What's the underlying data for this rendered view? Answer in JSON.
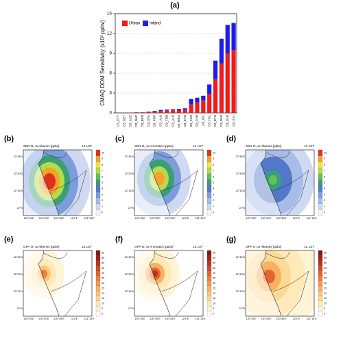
{
  "chart_data": {
    "type": "bar",
    "title": "(a)",
    "y_label": "CMAQ DDM Sensitivity (x10³ ppbv)",
    "categories": [
      "O3_ETY",
      "O3_KET",
      "O3_ACE",
      "O3_NAP",
      "O3_BEN",
      "O3_ETA",
      "O3_PRP",
      "O3_ALK",
      "O3_TEB",
      "O3_ALD",
      "O3_MEO",
      "O3_ETO",
      "O3_XSO",
      "O3_FOR",
      "O3_IOL",
      "O3_TOL",
      "O3_ETH",
      "O3_PAR",
      "O3_OLE",
      "O3_XYL"
    ],
    "series": [
      {
        "name": "Urban",
        "color": "#ee1c1c",
        "values": [
          0.01,
          0.02,
          0.03,
          0.07,
          0.07,
          0.14,
          0.2,
          0.3,
          0.35,
          0.4,
          0.42,
          0.5,
          1.3,
          1.6,
          1.9,
          2.9,
          5.1,
          7.5,
          9.0,
          9.5
        ]
      },
      {
        "name": "Inland",
        "color": "#1c1cee",
        "values": [
          0.01,
          0.01,
          0.02,
          0.03,
          0.03,
          0.06,
          0.1,
          0.15,
          0.15,
          0.15,
          0.18,
          0.2,
          0.8,
          0.7,
          0.7,
          1.4,
          2.8,
          3.7,
          4.3,
          4.1
        ]
      }
    ],
    "stacked": true,
    "ylim": [
      0,
      15
    ],
    "yticks": [
      0,
      3,
      6,
      9,
      12,
      15
    ],
    "grid": true,
    "legend": "upper left"
  },
  "maps": {
    "lon_labels": [
      "120°15'E",
      "120°30'E",
      "120°45'E",
      "121°E",
      "121°15'E"
    ],
    "lat_labels": [
      "22°45'N",
      "22°30'N",
      "22°15'N",
      "22°N"
    ],
    "sen_colors": [
      "#f4f4ff",
      "#cfd9f2",
      "#a6bde9",
      "#7c9ddc",
      "#5278c9",
      "#3a9f78",
      "#61c45a",
      "#b4dc46",
      "#eee63a",
      "#f3a32c",
      "#e0301c"
    ],
    "sen_ticks": [
      0,
      1,
      2,
      3,
      4,
      5,
      6,
      7,
      8,
      9,
      10
    ],
    "ofp_colors": [
      "#fffdf4",
      "#fff4d6",
      "#ffe9b8",
      "#fdd996",
      "#fcc679",
      "#f9b060",
      "#f5994c",
      "#ee7f3b",
      "#e3642d",
      "#d24a23",
      "#bb331b",
      "#a22216",
      "#881512"
    ],
    "ofp_ticks": [
      0,
      5,
      10,
      15,
      20,
      25,
      30,
      35,
      40,
      45,
      50,
      55,
      60
    ],
    "panels": [
      {
        "label": "(b)",
        "title": "SEN O₃ to Alkenes [ppbv]",
        "time": "12 LST"
      },
      {
        "label": "(c)",
        "title": "SEN O₃ to Aromatics [ppbv]",
        "time": "12 LST"
      },
      {
        "label": "(d)",
        "title": "SEN O₃ to Alkanes [ppbv]",
        "time": "12 LST"
      },
      {
        "label": "(e)",
        "title": "OFP O₃ to Alkenes [ppbv]",
        "time": "12 LST"
      },
      {
        "label": "(f)",
        "title": "OFP O₃ to Aromatics [ppbv]",
        "time": "12 LST"
      },
      {
        "label": "(g)",
        "title": "OFP O₃ to Alkanes [ppbv]",
        "time": "12 LST"
      }
    ]
  }
}
